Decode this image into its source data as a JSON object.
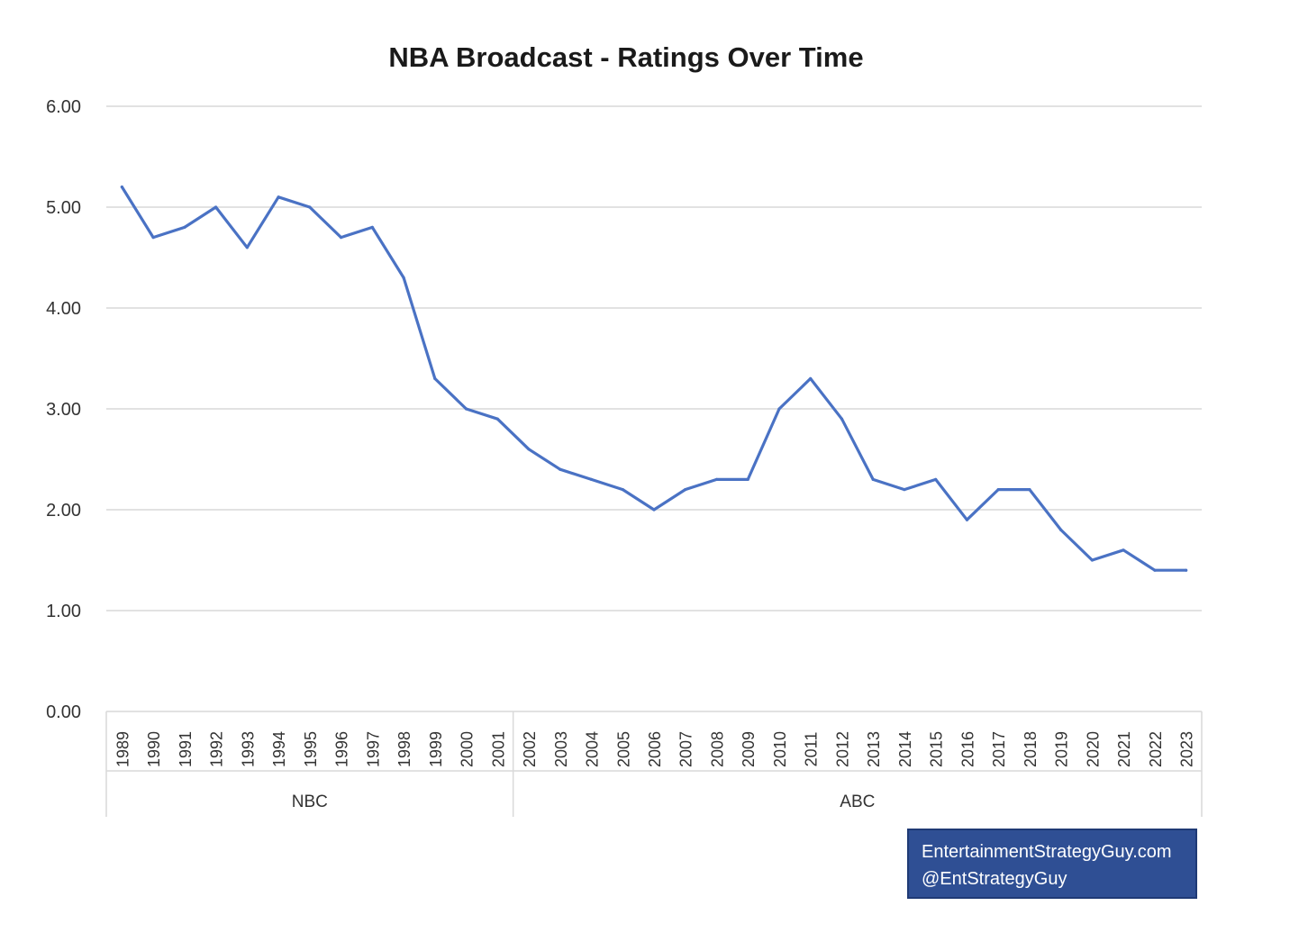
{
  "chart_data": {
    "type": "line",
    "title": "NBA Broadcast - Ratings Over Time",
    "xlabel": "",
    "ylabel": "",
    "ylim": [
      0,
      6
    ],
    "yticks": [
      "0.00",
      "1.00",
      "2.00",
      "3.00",
      "4.00",
      "5.00",
      "6.00"
    ],
    "grid": true,
    "x": [
      "1989",
      "1990",
      "1991",
      "1992",
      "1993",
      "1994",
      "1995",
      "1996",
      "1997",
      "1998",
      "1999",
      "2000",
      "2001",
      "2002",
      "2003",
      "2004",
      "2005",
      "2006",
      "2007",
      "2008",
      "2009",
      "2010",
      "2011",
      "2012",
      "2013",
      "2014",
      "2015",
      "2016",
      "2017",
      "2018",
      "2019",
      "2020",
      "2021",
      "2022",
      "2023"
    ],
    "groups": [
      {
        "label": "NBC",
        "count": 13
      },
      {
        "label": "ABC",
        "count": 22
      }
    ],
    "series": [
      {
        "name": "Ratings",
        "color": "#4a72c4",
        "values": [
          5.2,
          4.7,
          4.8,
          5.0,
          4.6,
          5.1,
          5.0,
          4.7,
          4.8,
          4.3,
          3.3,
          3.0,
          2.9,
          2.6,
          2.4,
          2.3,
          2.2,
          2.0,
          2.2,
          2.3,
          2.3,
          3.0,
          3.3,
          2.9,
          2.3,
          2.2,
          2.3,
          1.9,
          2.2,
          2.2,
          1.8,
          1.5,
          1.6,
          1.4,
          1.4
        ]
      }
    ]
  },
  "watermark": {
    "line1": "EntertainmentStrategyGuy.com",
    "line2": "@EntStrategyGuy"
  }
}
